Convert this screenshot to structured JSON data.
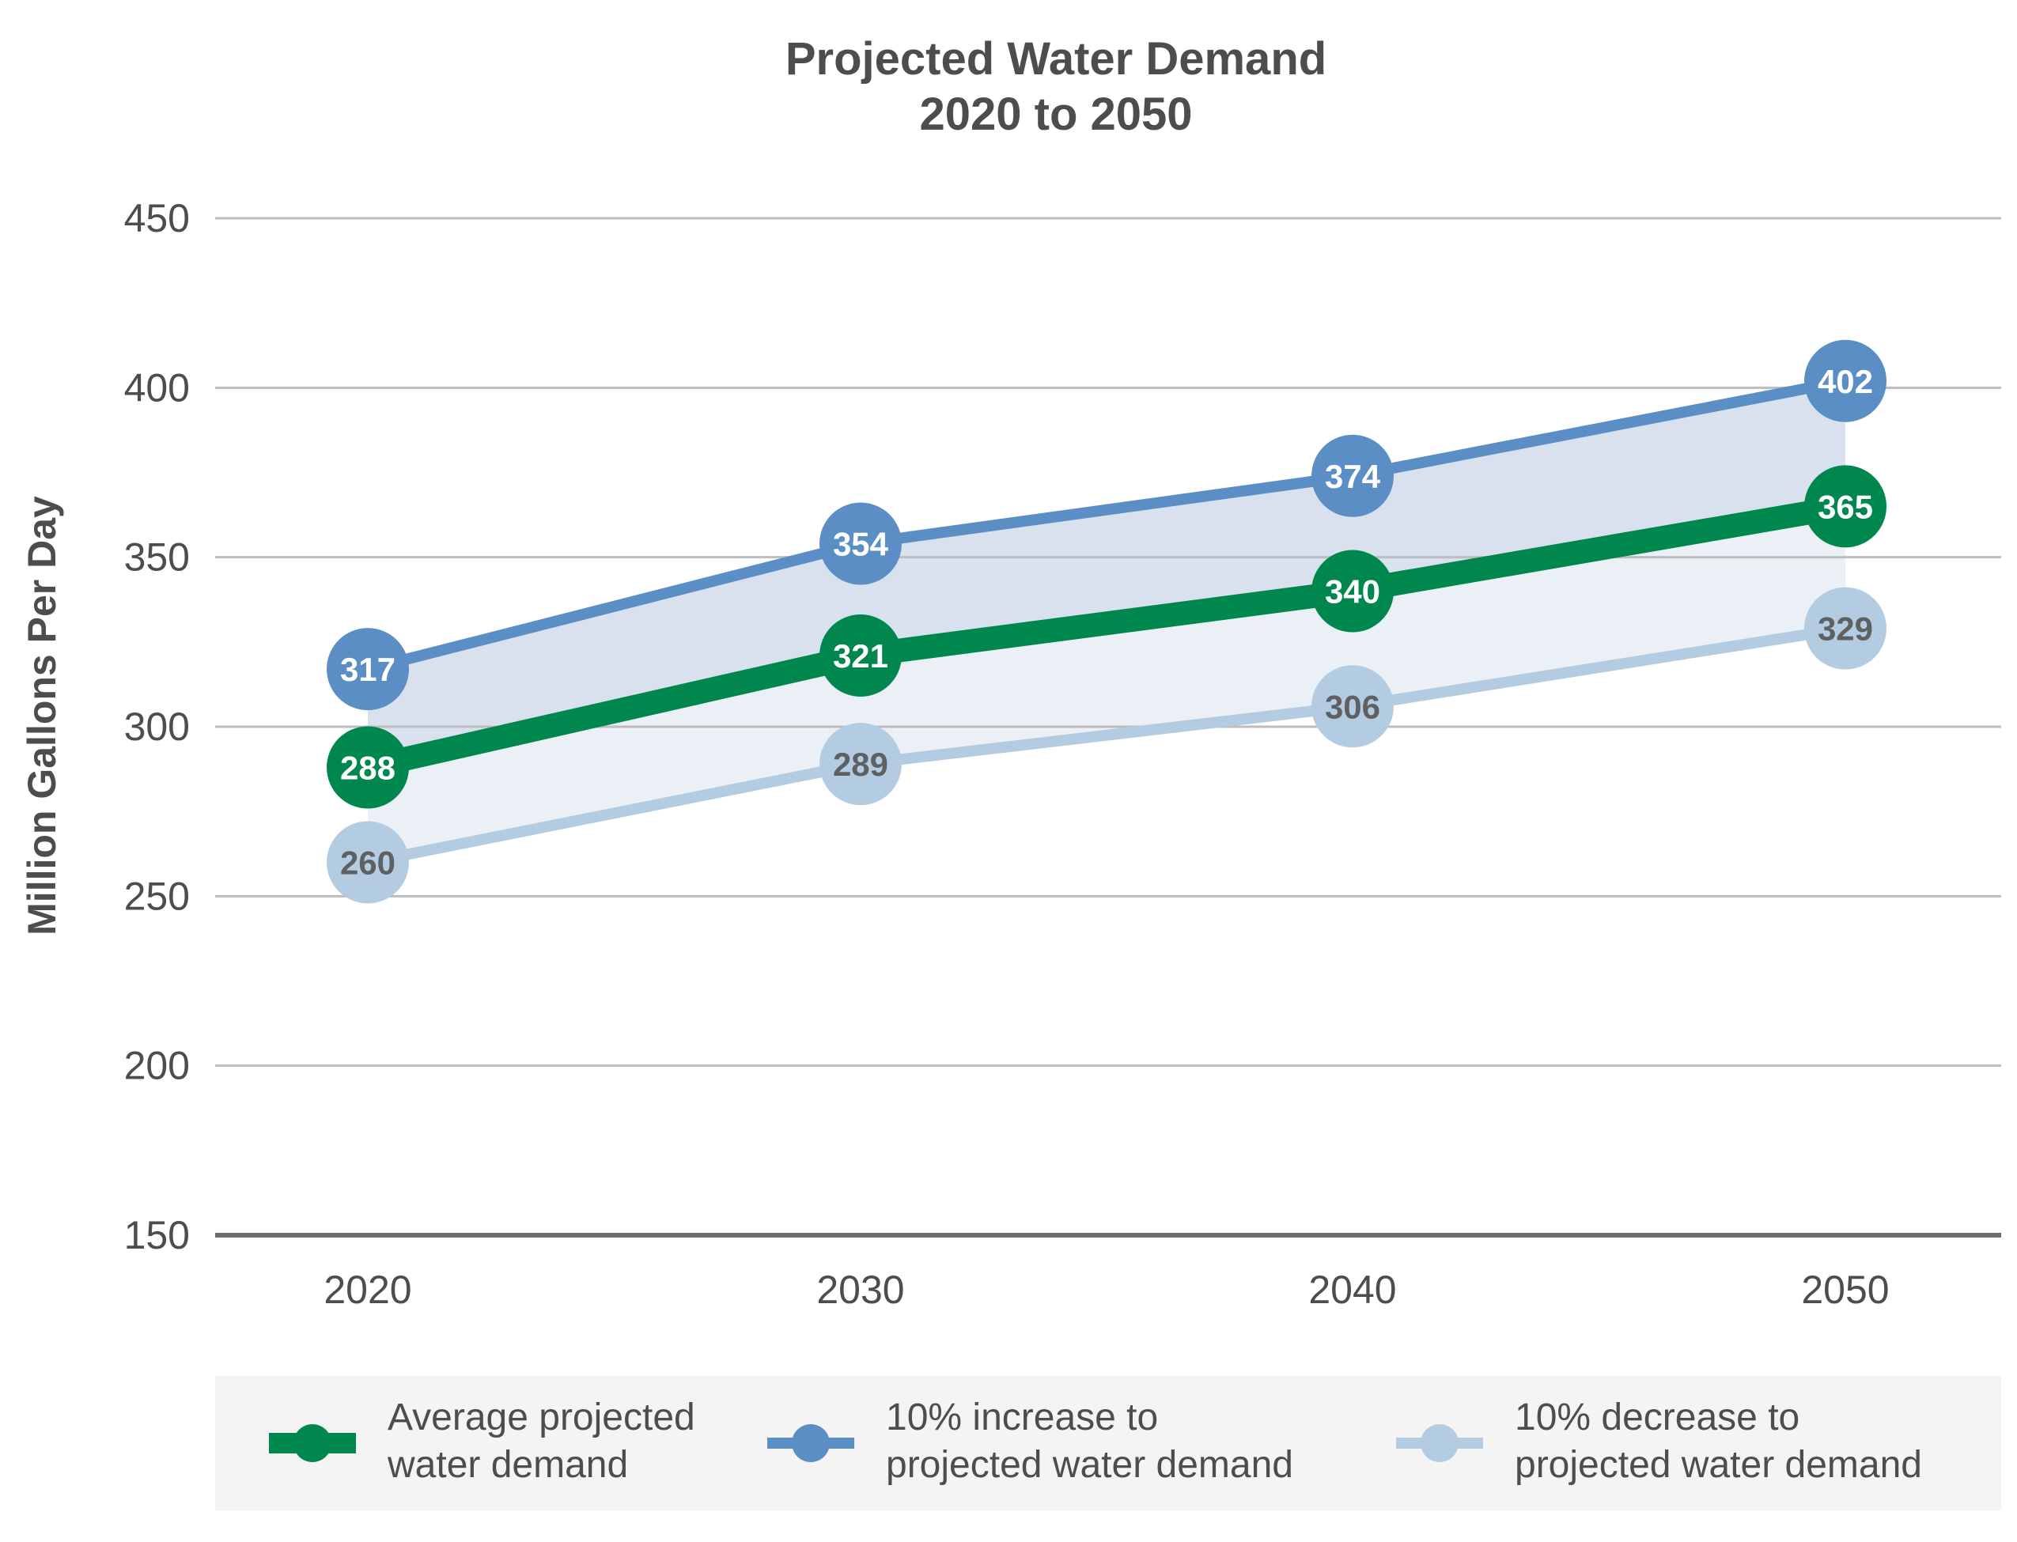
{
  "chart_data": {
    "type": "line",
    "title": [
      "Projected Water Demand",
      "2020 to 2050"
    ],
    "xlabel": "",
    "ylabel": "Million Gallons Per Day",
    "categories": [
      "2020",
      "2030",
      "2040",
      "2050"
    ],
    "yticks": [
      "150",
      "200",
      "250",
      "300",
      "350",
      "400",
      "450"
    ],
    "ylim": [
      150,
      450
    ],
    "grid": true,
    "legend_position": "bottom",
    "series": [
      {
        "name": "10% increase to projected water demand",
        "legend_lines": [
          "10% increase to",
          "projected water demand"
        ],
        "values": [
          317,
          354,
          374,
          402
        ],
        "labels": [
          "317",
          "354",
          "374",
          "402"
        ],
        "color": "#5b8ec5",
        "label_color": "#ffffff"
      },
      {
        "name": "Average projected water demand",
        "legend_lines": [
          "Average projected",
          "water demand"
        ],
        "values": [
          288,
          321,
          340,
          365
        ],
        "labels": [
          "288",
          "321",
          "340",
          "365"
        ],
        "color": "#00874d",
        "label_color": "#ffffff"
      },
      {
        "name": "10% decrease to projected water demand",
        "legend_lines": [
          "10% decrease to",
          "projected water demand"
        ],
        "values": [
          260,
          289,
          306,
          329
        ],
        "labels": [
          "260",
          "289",
          "306",
          "329"
        ],
        "color": "#b3cce2",
        "label_color": "#5f6062"
      }
    ],
    "colors": {
      "band_upper": "#d9e1ef",
      "band_lower": "#ebf0f7",
      "gridline": "#bdbdbf",
      "baseline": "#6d6e71",
      "legend_bg": "#f4f4f4"
    }
  }
}
